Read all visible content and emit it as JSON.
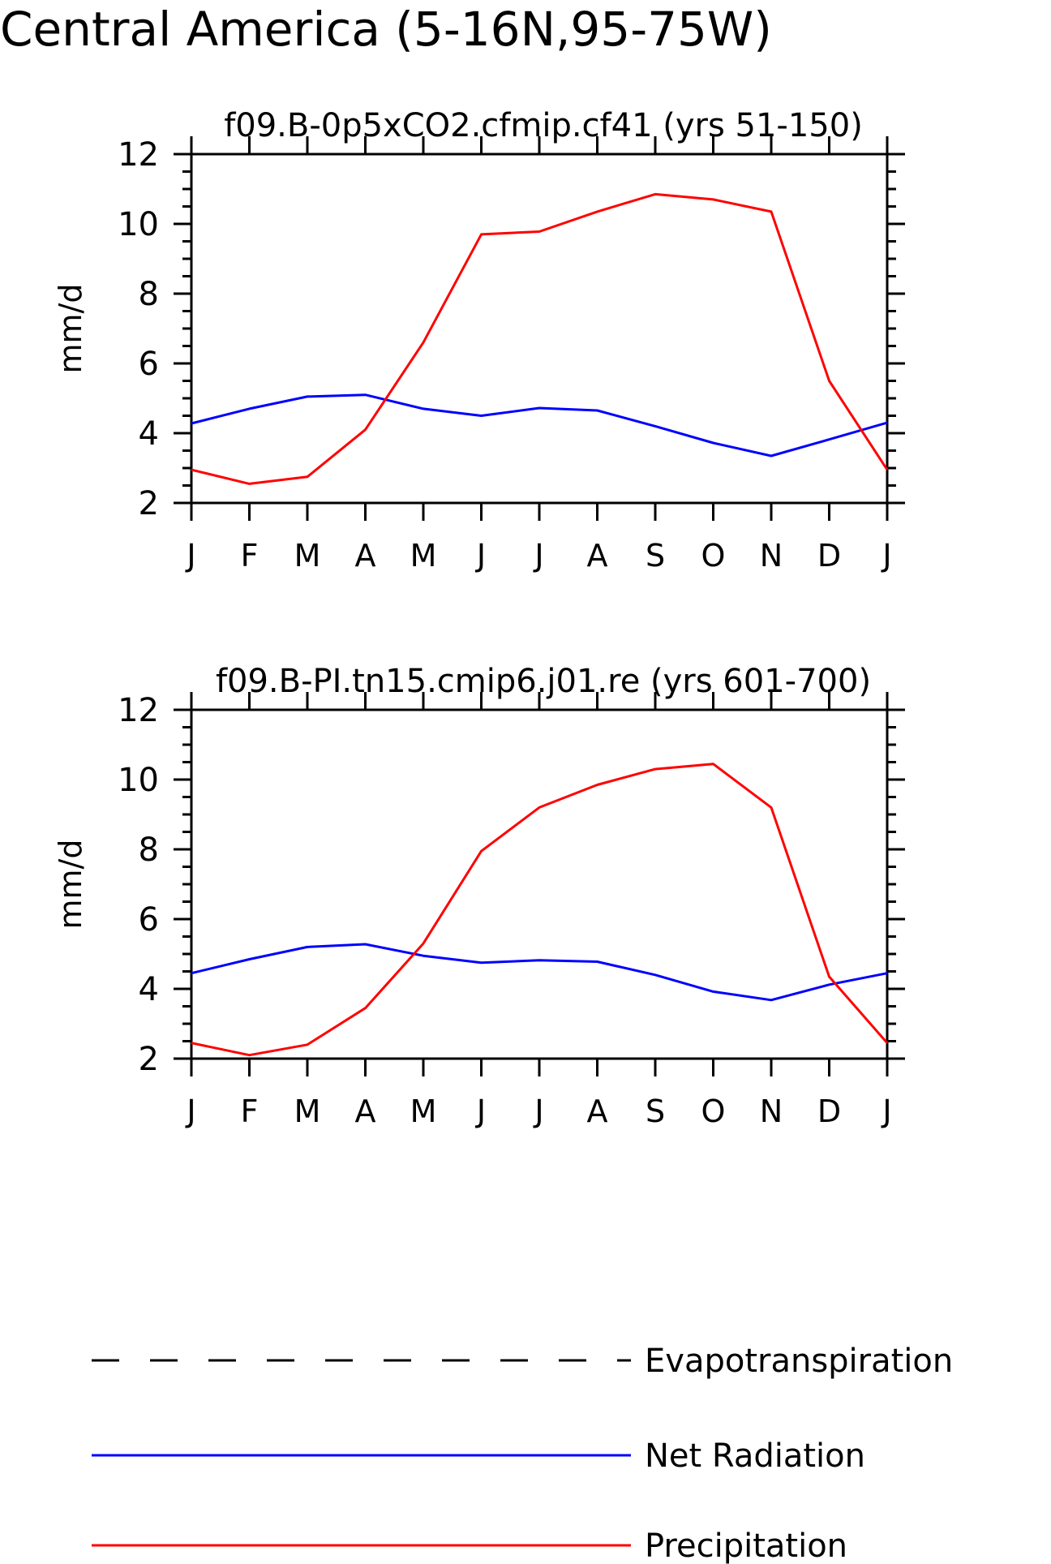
{
  "main_title": "Central America (5-16N,95-75W)",
  "chart_data": [
    {
      "type": "line",
      "title": "f09.B-0p5xCO2.cfmip.cf41 (yrs 51-150)",
      "ylabel": "mm/d",
      "xlabel": "",
      "categories": [
        "J",
        "F",
        "M",
        "A",
        "M",
        "J",
        "J",
        "A",
        "S",
        "O",
        "N",
        "D",
        "J"
      ],
      "ylim": [
        2,
        12
      ],
      "yticks": [
        2,
        4,
        6,
        8,
        10,
        12
      ],
      "series": [
        {
          "name": "Net Radiation",
          "color": "#0000ff",
          "values": [
            4.28,
            4.7,
            5.05,
            5.1,
            4.7,
            4.5,
            4.72,
            4.65,
            4.2,
            3.72,
            3.35,
            3.82,
            4.3
          ]
        },
        {
          "name": "Precipitation",
          "color": "#ff0000",
          "values": [
            2.95,
            2.55,
            2.75,
            4.1,
            6.6,
            9.7,
            9.78,
            10.35,
            10.85,
            10.7,
            10.35,
            5.5,
            2.95
          ]
        }
      ]
    },
    {
      "type": "line",
      "title": "f09.B-PI.tn15.cmip6.j01.re (yrs 601-700)",
      "ylabel": "mm/d",
      "xlabel": "",
      "categories": [
        "J",
        "F",
        "M",
        "A",
        "M",
        "J",
        "J",
        "A",
        "S",
        "O",
        "N",
        "D",
        "J"
      ],
      "ylim": [
        2,
        12
      ],
      "yticks": [
        2,
        4,
        6,
        8,
        10,
        12
      ],
      "series": [
        {
          "name": "Net Radiation",
          "color": "#0000ff",
          "values": [
            4.45,
            4.85,
            5.2,
            5.28,
            4.95,
            4.75,
            4.82,
            4.78,
            4.4,
            3.92,
            3.68,
            4.12,
            4.45
          ]
        },
        {
          "name": "Precipitation",
          "color": "#ff0000",
          "values": [
            2.45,
            2.1,
            2.4,
            3.45,
            5.3,
            7.95,
            9.2,
            9.85,
            10.3,
            10.45,
            9.2,
            4.35,
            2.45
          ]
        }
      ]
    }
  ],
  "legend": [
    {
      "label": "Evapotranspiration",
      "color": "#000000",
      "style": "dashed"
    },
    {
      "label": "Net Radiation",
      "color": "#0000ff",
      "style": "solid"
    },
    {
      "label": "Precipitation",
      "color": "#ff0000",
      "style": "solid"
    }
  ]
}
